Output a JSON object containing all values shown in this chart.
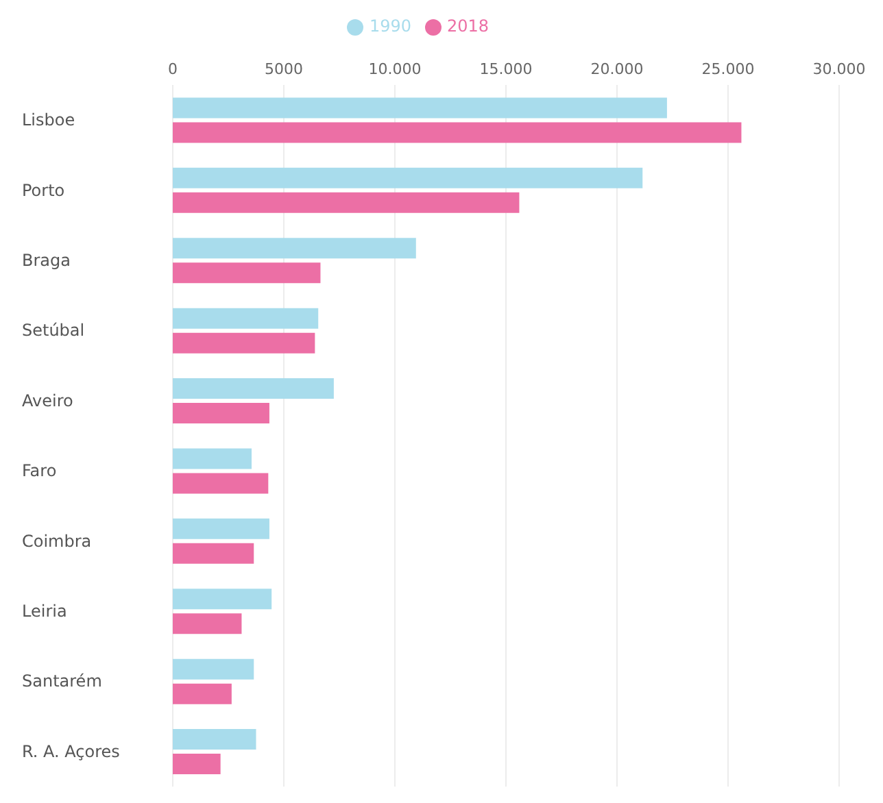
{
  "chart_data": {
    "type": "bar",
    "orientation": "horizontal",
    "categories": [
      "Lisboe",
      "Porto",
      "Braga",
      "Setúbal",
      "Aveiro",
      "Faro",
      "Coimbra",
      "Leiria",
      "Santarém",
      "R. A. Açores"
    ],
    "series": [
      {
        "name": "1990",
        "color": "#a8dcec",
        "values": [
          22250,
          21150,
          10950,
          6550,
          7250,
          3550,
          4350,
          4450,
          3650,
          3750
        ]
      },
      {
        "name": "2018",
        "color": "#ec6fa5",
        "values": [
          25600,
          15600,
          6650,
          6400,
          4350,
          4300,
          3650,
          3100,
          2650,
          2150
        ]
      }
    ],
    "xlim": [
      0,
      30000
    ],
    "xticks": [
      0,
      5000,
      {
        "value": 10000,
        "label": "10.000"
      },
      {
        "value": 15000,
        "label": "15.000"
      },
      {
        "value": 20000,
        "label": "20.000"
      },
      {
        "value": 25000,
        "label": "25.000"
      },
      {
        "value": 30000,
        "label": "30.000"
      }
    ],
    "grid": "x",
    "legend": "top"
  }
}
